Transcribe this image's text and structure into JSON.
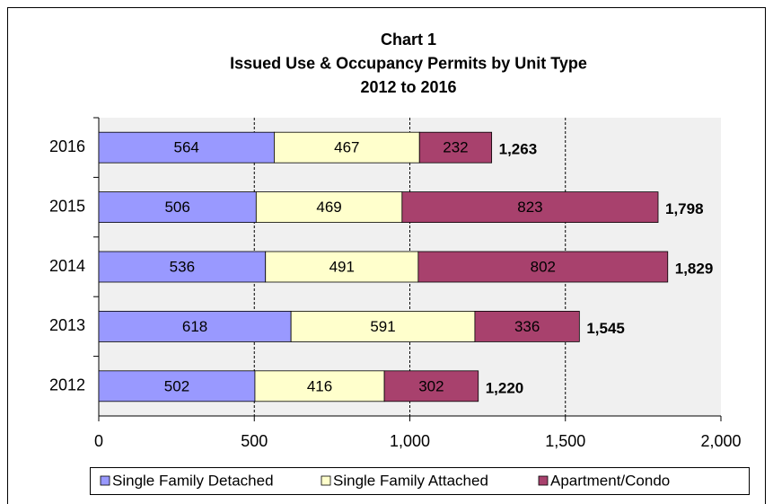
{
  "chart_data": {
    "type": "stacked-bar-horizontal",
    "title": [
      "Chart 1",
      "Issued Use & Occupancy Permits by Unit Type",
      "2012 to 2016"
    ],
    "categories": [
      "2016",
      "2015",
      "2014",
      "2013",
      "2012"
    ],
    "series": [
      {
        "name": "Single Family Detached",
        "color": "#9999ff",
        "values": [
          564,
          506,
          536,
          618,
          502
        ]
      },
      {
        "name": "Single Family Attached",
        "color": "#ffffcc",
        "values": [
          467,
          469,
          491,
          591,
          416
        ]
      },
      {
        "name": "Apartment/Condo",
        "color": "#a8416d",
        "values": [
          232,
          823,
          802,
          336,
          302
        ]
      }
    ],
    "totals": [
      1263,
      1798,
      1829,
      1545,
      1220
    ],
    "total_labels": [
      "1,263",
      "1,798",
      "1,829",
      "1,545",
      "1,220"
    ],
    "xlim": [
      0,
      2000
    ],
    "xticks": [
      0,
      500,
      {
        "value": 1000,
        "label": "1,000"
      },
      {
        "value": 1500,
        "label": "1,500"
      },
      {
        "value": 2000,
        "label": "2,000"
      }
    ],
    "grid": true,
    "legend": "bottom"
  }
}
